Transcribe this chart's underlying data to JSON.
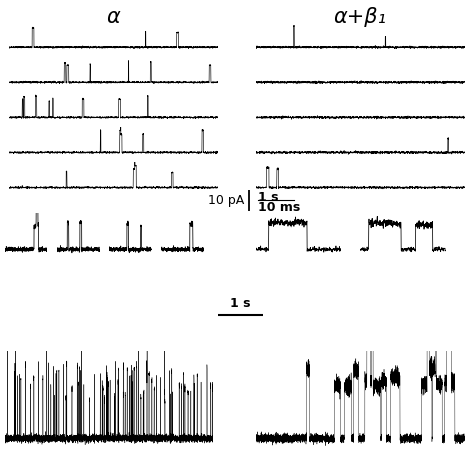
{
  "title_alpha": "α",
  "title_alpha_beta": "α+β₁",
  "scale_bar_text_y": "10 pA",
  "scale_bar_text_x1": "1 s",
  "scale_bar_text_x2": "10 ms",
  "scale_bar_bottom": "1 s",
  "bg_color": "#ffffff",
  "figsize": [
    4.74,
    4.74
  ],
  "dpi": 100
}
